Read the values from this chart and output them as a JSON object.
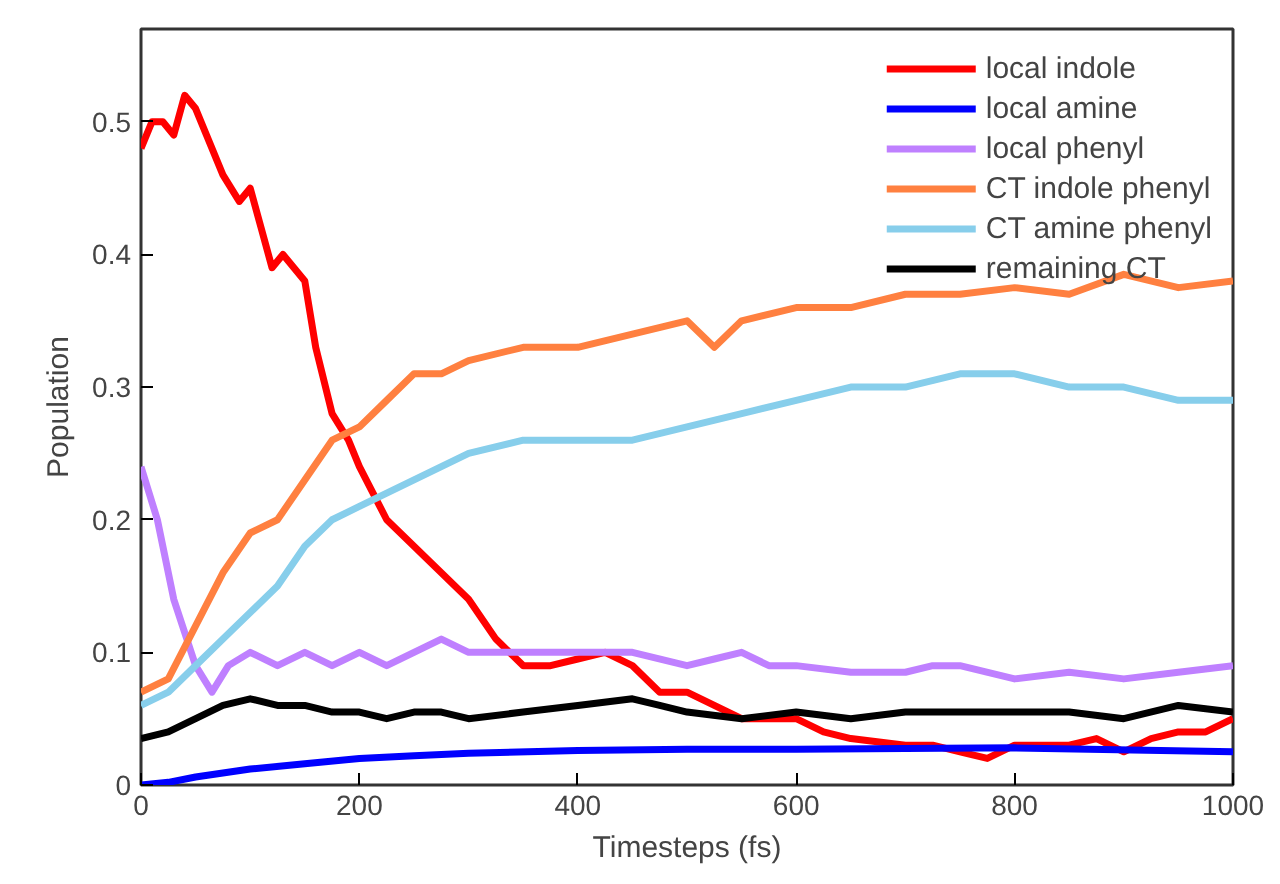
{
  "chart_data": {
    "type": "line",
    "xlabel": "Timesteps (fs)",
    "ylabel": "Population",
    "xlim": [
      0,
      1000
    ],
    "ylim": [
      0,
      0.57
    ],
    "xticks": [
      0,
      200,
      400,
      600,
      800,
      1000
    ],
    "yticks": [
      0,
      0.1,
      0.2,
      0.3,
      0.4,
      0.5
    ],
    "grid": false,
    "legend": "top right",
    "line_style": "solid",
    "marker": "none",
    "series": [
      {
        "name": "local indole",
        "color": "#ff0000",
        "x": [
          0,
          10,
          20,
          30,
          40,
          50,
          60,
          75,
          90,
          100,
          110,
          120,
          130,
          140,
          150,
          160,
          175,
          190,
          200,
          225,
          250,
          275,
          300,
          325,
          350,
          375,
          400,
          425,
          450,
          475,
          500,
          525,
          550,
          575,
          600,
          625,
          650,
          700,
          725,
          750,
          775,
          800,
          850,
          875,
          900,
          925,
          950,
          975,
          1000
        ],
        "values": [
          0.48,
          0.5,
          0.5,
          0.49,
          0.52,
          0.51,
          0.49,
          0.46,
          0.44,
          0.45,
          0.42,
          0.39,
          0.4,
          0.39,
          0.38,
          0.33,
          0.28,
          0.26,
          0.24,
          0.2,
          0.18,
          0.16,
          0.14,
          0.11,
          0.09,
          0.09,
          0.095,
          0.1,
          0.09,
          0.07,
          0.07,
          0.06,
          0.05,
          0.05,
          0.05,
          0.04,
          0.035,
          0.03,
          0.03,
          0.025,
          0.02,
          0.03,
          0.03,
          0.035,
          0.025,
          0.035,
          0.04,
          0.04,
          0.05
        ]
      },
      {
        "name": "local amine",
        "color": "#0000ff",
        "x": [
          0,
          25,
          50,
          100,
          150,
          200,
          250,
          300,
          400,
          500,
          600,
          800,
          1000
        ],
        "values": [
          0.0,
          0.002,
          0.006,
          0.012,
          0.016,
          0.02,
          0.022,
          0.024,
          0.026,
          0.027,
          0.027,
          0.028,
          0.025
        ]
      },
      {
        "name": "local phenyl",
        "color": "#bf80ff",
        "x": [
          0,
          15,
          30,
          50,
          65,
          80,
          100,
          125,
          150,
          175,
          200,
          225,
          250,
          275,
          300,
          325,
          350,
          400,
          450,
          500,
          525,
          550,
          575,
          600,
          650,
          700,
          725,
          750,
          800,
          850,
          900,
          950,
          1000
        ],
        "values": [
          0.24,
          0.2,
          0.14,
          0.09,
          0.07,
          0.09,
          0.1,
          0.09,
          0.1,
          0.09,
          0.1,
          0.09,
          0.1,
          0.11,
          0.1,
          0.1,
          0.1,
          0.1,
          0.1,
          0.09,
          0.095,
          0.1,
          0.09,
          0.09,
          0.085,
          0.085,
          0.09,
          0.09,
          0.08,
          0.085,
          0.08,
          0.085,
          0.09
        ]
      },
      {
        "name": "CT indole phenyl",
        "color": "#ff8040",
        "x": [
          0,
          25,
          50,
          75,
          100,
          125,
          150,
          175,
          200,
          225,
          250,
          275,
          300,
          350,
          400,
          450,
          500,
          525,
          550,
          600,
          650,
          700,
          750,
          800,
          850,
          900,
          950,
          1000
        ],
        "values": [
          0.07,
          0.08,
          0.12,
          0.16,
          0.19,
          0.2,
          0.23,
          0.26,
          0.27,
          0.29,
          0.31,
          0.31,
          0.32,
          0.33,
          0.33,
          0.34,
          0.35,
          0.33,
          0.35,
          0.36,
          0.36,
          0.37,
          0.37,
          0.375,
          0.37,
          0.385,
          0.375,
          0.38
        ]
      },
      {
        "name": "CT amine phenyl",
        "color": "#87ceeb",
        "x": [
          0,
          25,
          50,
          75,
          100,
          125,
          150,
          175,
          200,
          225,
          250,
          300,
          350,
          400,
          450,
          500,
          550,
          600,
          650,
          700,
          750,
          800,
          850,
          900,
          950,
          1000
        ],
        "values": [
          0.06,
          0.07,
          0.09,
          0.11,
          0.13,
          0.15,
          0.18,
          0.2,
          0.21,
          0.22,
          0.23,
          0.25,
          0.26,
          0.26,
          0.26,
          0.27,
          0.28,
          0.29,
          0.3,
          0.3,
          0.31,
          0.31,
          0.3,
          0.3,
          0.29,
          0.29
        ]
      },
      {
        "name": "remaining CT",
        "color": "#000000",
        "x": [
          0,
          25,
          50,
          75,
          100,
          125,
          150,
          175,
          200,
          225,
          250,
          275,
          300,
          350,
          400,
          450,
          475,
          500,
          550,
          600,
          650,
          700,
          750,
          800,
          850,
          900,
          950,
          1000
        ],
        "values": [
          0.035,
          0.04,
          0.05,
          0.06,
          0.065,
          0.06,
          0.06,
          0.055,
          0.055,
          0.05,
          0.055,
          0.055,
          0.05,
          0.055,
          0.06,
          0.065,
          0.06,
          0.055,
          0.05,
          0.055,
          0.05,
          0.055,
          0.055,
          0.055,
          0.055,
          0.05,
          0.06,
          0.055
        ]
      }
    ]
  }
}
